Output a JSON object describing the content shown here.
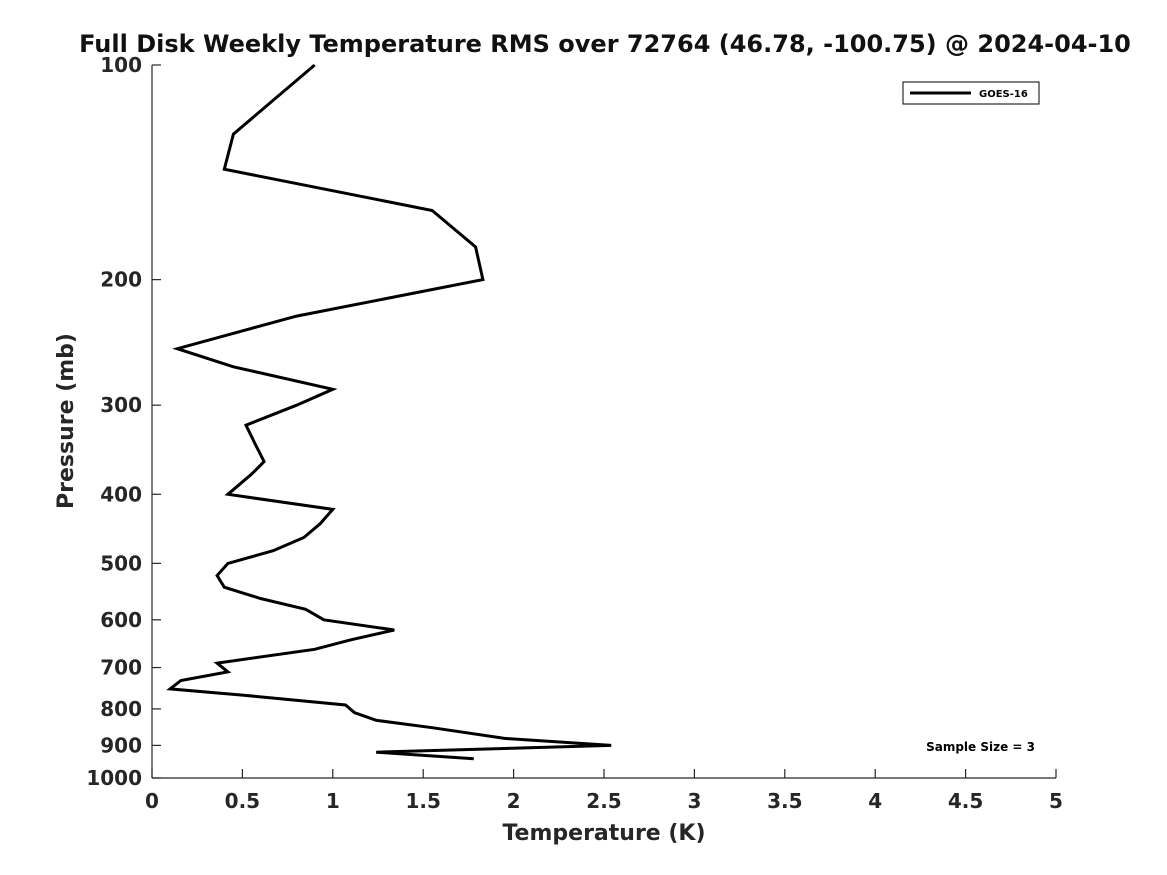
{
  "chart_data": {
    "type": "line",
    "title": "Full Disk Weekly Temperature RMS over 72764 (46.78, -100.75) @ 2024-04-10",
    "xlabel": "Temperature (K)",
    "ylabel": "Pressure (mb)",
    "xlim": [
      0,
      5
    ],
    "ylim": [
      100,
      1000
    ],
    "y_scale": "log",
    "y_reversed": true,
    "grid": false,
    "legend_position": "top-right",
    "x_ticks": [
      "0",
      "0.5",
      "1",
      "1.5",
      "2",
      "2.5",
      "3",
      "3.5",
      "4",
      "4.5",
      "5"
    ],
    "y_ticks": [
      "100",
      "200",
      "300",
      "400",
      "500",
      "600",
      "700",
      "800",
      "900",
      "1000"
    ],
    "annotation": "Sample Size = 3",
    "series": [
      {
        "name": "GOES-16",
        "color": "#000000",
        "x": [
          0.9,
          0.45,
          0.4,
          1.55,
          1.79,
          1.83,
          0.8,
          0.14,
          0.45,
          1.0,
          0.8,
          0.52,
          0.57,
          0.62,
          0.55,
          0.42,
          1.0,
          0.93,
          0.84,
          0.67,
          0.42,
          0.36,
          0.4,
          0.6,
          0.85,
          0.95,
          1.34,
          1.1,
          0.9,
          0.36,
          0.42,
          0.16,
          0.1,
          0.5,
          1.07,
          1.12,
          1.24,
          1.55,
          1.95,
          2.54,
          1.24,
          1.78
        ],
        "y": [
          100,
          125,
          140,
          160,
          180,
          200,
          225,
          250,
          265,
          285,
          300,
          320,
          340,
          360,
          375,
          400,
          420,
          440,
          460,
          480,
          500,
          520,
          540,
          560,
          580,
          600,
          620,
          640,
          660,
          690,
          710,
          730,
          750,
          765,
          790,
          810,
          830,
          850,
          880,
          900,
          920,
          940
        ]
      }
    ]
  }
}
